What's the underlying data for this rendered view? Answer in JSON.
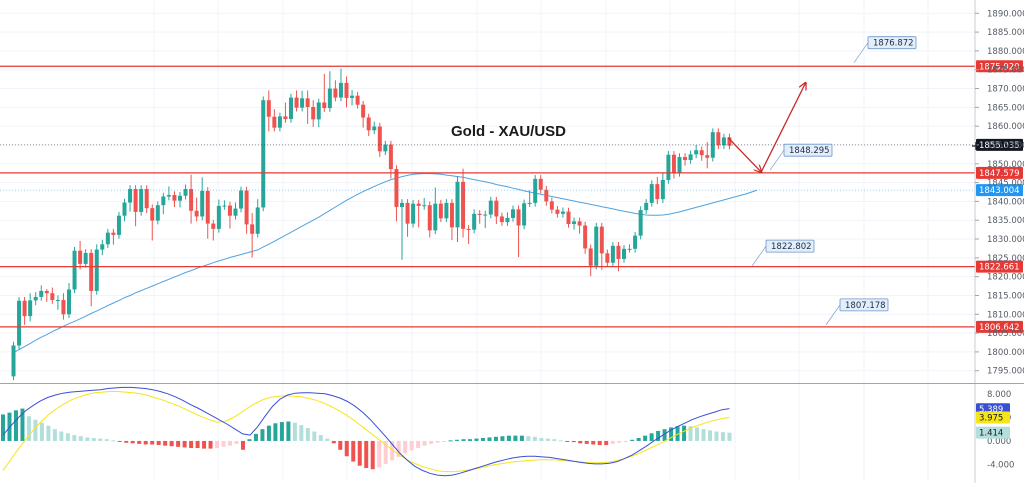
{
  "chart_data": {
    "type": "candlestick",
    "title": "Gold - XAU/USD",
    "price_axis": {
      "range": [
        1792,
        1893
      ],
      "ticks": [
        1890,
        1885,
        1880,
        1875,
        1870,
        1865,
        1860,
        1855,
        1850,
        1845,
        1840,
        1835,
        1830,
        1825,
        1820,
        1815,
        1810,
        1805,
        1800,
        1795
      ],
      "tick_labels": [
        "1890.000",
        "1885.000",
        "1880.000",
        "1875.000",
        "1870.000",
        "1865.000",
        "1860.000",
        "1855.000",
        "1850.000",
        "1845.000",
        "1840.000",
        "1835.000",
        "1830.000",
        "1825.000",
        "1820.000",
        "1815.000",
        "1810.000",
        "1805.000",
        "1800.000",
        "1795.000"
      ]
    },
    "horizontal_levels": [
      {
        "value": 1875.92,
        "label": "1875.920"
      },
      {
        "value": 1847.579,
        "label": "1847.579"
      },
      {
        "value": 1822.661,
        "label": "1822.661"
      },
      {
        "value": 1806.642,
        "label": "1806.642"
      }
    ],
    "level_callouts": [
      {
        "value": 1876.872,
        "label": "1876.872"
      },
      {
        "value": 1848.295,
        "label": "1848.295"
      },
      {
        "value": 1822.802,
        "label": "1822.802"
      },
      {
        "value": 1807.178,
        "label": "1807.178"
      }
    ],
    "price_tags": [
      {
        "value": 1855.035,
        "label": "1855.035",
        "color": "#131722"
      },
      {
        "value": 1843.004,
        "label": "1843.004",
        "color": "#2196f3"
      }
    ],
    "candle_start_price": 1793,
    "candles": [
      [
        1793.5,
        1801.7,
        1792.5,
        1802.7
      ],
      [
        1801.7,
        1813.6,
        1800.7,
        1814.6
      ],
      [
        1813.6,
        1809.5,
        1807.2,
        1814.6
      ],
      [
        1809.5,
        1813.7,
        1808.1,
        1815.6
      ],
      [
        1813.7,
        1814.6,
        1812.4,
        1815.9
      ],
      [
        1814.6,
        1816.2,
        1813.6,
        1817.7
      ],
      [
        1816.2,
        1815.6,
        1813.3,
        1816.7
      ],
      [
        1815.6,
        1813.8,
        1812.8,
        1817.1
      ],
      [
        1813.8,
        1813.8,
        1811.2,
        1815.0
      ],
      [
        1813.8,
        1810.0,
        1808.6,
        1815.6
      ],
      [
        1810.0,
        1816.6,
        1809.0,
        1818.3
      ],
      [
        1816.6,
        1826.9,
        1815.6,
        1827.9
      ],
      [
        1826.9,
        1823.4,
        1821.9,
        1829.5
      ],
      [
        1823.4,
        1826.3,
        1822.4,
        1827.3
      ],
      [
        1826.3,
        1816.2,
        1812.1,
        1827.3
      ],
      [
        1816.2,
        1827.2,
        1815.2,
        1828.6
      ],
      [
        1827.2,
        1828.6,
        1825.7,
        1829.8
      ],
      [
        1828.6,
        1831.7,
        1827.6,
        1832.7
      ],
      [
        1831.7,
        1831.1,
        1828.5,
        1832.7
      ],
      [
        1831.1,
        1836.2,
        1830.1,
        1837.2
      ],
      [
        1836.2,
        1839.7,
        1834.7,
        1840.7
      ],
      [
        1839.7,
        1843.3,
        1837.3,
        1844.3
      ],
      [
        1843.3,
        1837.2,
        1833.4,
        1844.3
      ],
      [
        1837.2,
        1843.3,
        1836.2,
        1844.3
      ],
      [
        1843.3,
        1838.2,
        1836.9,
        1844.3
      ],
      [
        1838.2,
        1834.9,
        1829.6,
        1839.2
      ],
      [
        1834.9,
        1839.0,
        1833.9,
        1840.0
      ],
      [
        1839.0,
        1841.3,
        1836.6,
        1842.3
      ],
      [
        1841.3,
        1841.7,
        1840.3,
        1844.0
      ],
      [
        1841.7,
        1840.2,
        1838.5,
        1842.7
      ],
      [
        1840.2,
        1841.5,
        1838.4,
        1842.5
      ],
      [
        1841.5,
        1843.3,
        1840.5,
        1844.5
      ],
      [
        1843.3,
        1837.5,
        1834.1,
        1847.1
      ],
      [
        1837.5,
        1836.0,
        1834.7,
        1841.0
      ],
      [
        1836.0,
        1842.8,
        1835.0,
        1846.4
      ],
      [
        1842.8,
        1834.1,
        1830.1,
        1843.8
      ],
      [
        1834.1,
        1832.7,
        1829.6,
        1835.1
      ],
      [
        1832.7,
        1838.8,
        1831.7,
        1840.5
      ],
      [
        1838.8,
        1838.9,
        1837.8,
        1840.3
      ],
      [
        1838.9,
        1836.2,
        1832.8,
        1839.9
      ],
      [
        1836.2,
        1838.1,
        1835.2,
        1839.7
      ],
      [
        1838.1,
        1842.9,
        1837.1,
        1843.9
      ],
      [
        1842.9,
        1833.9,
        1831.4,
        1843.9
      ],
      [
        1833.9,
        1831.4,
        1825.1,
        1836.9
      ],
      [
        1831.4,
        1838.4,
        1830.4,
        1840.6
      ],
      [
        1838.4,
        1866.9,
        1837.4,
        1867.9
      ],
      [
        1866.9,
        1862.5,
        1858.6,
        1869.5
      ],
      [
        1862.5,
        1859.6,
        1858.6,
        1864.5
      ],
      [
        1859.6,
        1862.6,
        1858.6,
        1863.6
      ],
      [
        1862.6,
        1861.9,
        1860.9,
        1866.3
      ],
      [
        1861.9,
        1867.6,
        1860.9,
        1868.6
      ],
      [
        1867.6,
        1864.9,
        1863.9,
        1869.5
      ],
      [
        1864.9,
        1867.4,
        1863.9,
        1869.4
      ],
      [
        1867.4,
        1865.1,
        1860.6,
        1869.5
      ],
      [
        1865.1,
        1861.8,
        1859.8,
        1866.9
      ],
      [
        1861.8,
        1866.3,
        1859.7,
        1867.3
      ],
      [
        1866.3,
        1864.8,
        1863.8,
        1873.9
      ],
      [
        1864.8,
        1870.0,
        1863.8,
        1874.6
      ],
      [
        1870.0,
        1867.6,
        1866.6,
        1872.2
      ],
      [
        1867.6,
        1871.5,
        1866.6,
        1875.3
      ],
      [
        1871.5,
        1867.5,
        1865.0,
        1873.2
      ],
      [
        1867.5,
        1868.1,
        1865.5,
        1869.6
      ],
      [
        1868.1,
        1865.7,
        1864.7,
        1869.1
      ],
      [
        1865.7,
        1862.3,
        1859.6,
        1866.7
      ],
      [
        1862.3,
        1858.9,
        1857.4,
        1863.3
      ],
      [
        1858.9,
        1859.9,
        1857.9,
        1861.2
      ],
      [
        1859.9,
        1853.3,
        1851.8,
        1860.9
      ],
      [
        1853.3,
        1855.1,
        1852.3,
        1856.1
      ],
      [
        1855.1,
        1848.6,
        1846.1,
        1856.1
      ],
      [
        1848.6,
        1838.5,
        1834.7,
        1849.6
      ],
      [
        1838.5,
        1839.6,
        1824.5,
        1840.6
      ],
      [
        1839.6,
        1834.1,
        1830.6,
        1840.6
      ],
      [
        1834.1,
        1839.4,
        1833.1,
        1840.4
      ],
      [
        1839.4,
        1838.8,
        1833.1,
        1840.4
      ],
      [
        1838.8,
        1839.0,
        1837.8,
        1840.9
      ],
      [
        1839.0,
        1832.3,
        1830.4,
        1840.0
      ],
      [
        1832.3,
        1839.4,
        1831.3,
        1843.7
      ],
      [
        1839.4,
        1835.5,
        1834.5,
        1840.4
      ],
      [
        1835.5,
        1839.6,
        1834.5,
        1840.6
      ],
      [
        1839.6,
        1833.1,
        1829.7,
        1840.6
      ],
      [
        1833.1,
        1845.2,
        1829.2,
        1846.7
      ],
      [
        1845.2,
        1832.7,
        1830.4,
        1848.7
      ],
      [
        1832.7,
        1832.5,
        1828.7,
        1833.7
      ],
      [
        1832.5,
        1836.7,
        1831.5,
        1837.9
      ],
      [
        1836.7,
        1836.4,
        1834.1,
        1837.7
      ],
      [
        1836.4,
        1836.5,
        1832.9,
        1837.5
      ],
      [
        1836.5,
        1840.2,
        1835.5,
        1841.2
      ],
      [
        1840.2,
        1836.0,
        1834.0,
        1841.2
      ],
      [
        1836.0,
        1834.5,
        1833.5,
        1837.0
      ],
      [
        1834.5,
        1835.6,
        1833.5,
        1837.1
      ],
      [
        1835.6,
        1837.9,
        1834.6,
        1838.9
      ],
      [
        1837.9,
        1833.6,
        1825.2,
        1838.9
      ],
      [
        1833.6,
        1839.5,
        1832.6,
        1840.5
      ],
      [
        1839.5,
        1839.6,
        1838.5,
        1842.9
      ],
      [
        1839.6,
        1846.0,
        1838.6,
        1847.0
      ],
      [
        1846.0,
        1843.1,
        1842.1,
        1847.0
      ],
      [
        1843.1,
        1840.0,
        1838.8,
        1844.1
      ],
      [
        1840.0,
        1837.8,
        1836.8,
        1841.0
      ],
      [
        1837.8,
        1836.7,
        1835.7,
        1838.8
      ],
      [
        1836.7,
        1837.3,
        1835.7,
        1838.4
      ],
      [
        1837.3,
        1834.0,
        1833.0,
        1838.3
      ],
      [
        1834.0,
        1834.7,
        1832.5,
        1835.7
      ],
      [
        1834.7,
        1833.6,
        1831.4,
        1835.7
      ],
      [
        1833.6,
        1827.5,
        1826.1,
        1834.6
      ],
      [
        1827.5,
        1822.9,
        1820.1,
        1828.5
      ],
      [
        1822.9,
        1833.3,
        1821.9,
        1834.3
      ],
      [
        1833.3,
        1826.2,
        1821.8,
        1834.3
      ],
      [
        1826.2,
        1823.7,
        1822.7,
        1827.2
      ],
      [
        1823.7,
        1828.2,
        1822.7,
        1829.2
      ],
      [
        1828.2,
        1824.7,
        1821.4,
        1829.2
      ],
      [
        1824.7,
        1827.4,
        1823.7,
        1828.4
      ],
      [
        1827.4,
        1827.4,
        1826.4,
        1828.6
      ],
      [
        1827.4,
        1830.9,
        1826.4,
        1831.9
      ],
      [
        1830.9,
        1837.7,
        1829.9,
        1838.7
      ],
      [
        1837.7,
        1839.6,
        1836.7,
        1840.6
      ],
      [
        1839.6,
        1844.6,
        1838.6,
        1845.6
      ],
      [
        1844.6,
        1840.6,
        1839.3,
        1846.5
      ],
      [
        1840.6,
        1845.7,
        1839.6,
        1847.7
      ],
      [
        1845.7,
        1852.4,
        1844.7,
        1853.4
      ],
      [
        1852.4,
        1847.6,
        1846.1,
        1853.4
      ],
      [
        1847.6,
        1851.8,
        1846.6,
        1852.8
      ],
      [
        1851.8,
        1851.0,
        1849.5,
        1852.8
      ],
      [
        1851.0,
        1852.5,
        1850.0,
        1853.5
      ],
      [
        1852.5,
        1853.6,
        1851.5,
        1855.0
      ],
      [
        1853.6,
        1852.3,
        1850.8,
        1854.6
      ],
      [
        1852.3,
        1851.6,
        1848.8,
        1855.8
      ],
      [
        1851.6,
        1858.4,
        1850.6,
        1859.4
      ],
      [
        1858.4,
        1854.9,
        1853.9,
        1859.4
      ],
      [
        1854.9,
        1857.0,
        1853.9,
        1858.0
      ],
      [
        1857.0,
        1854.8,
        1853.8,
        1858.0
      ]
    ],
    "moving_average": [
      1799.8,
      1800.6,
      1801.4,
      1802.2,
      1803.1,
      1803.9,
      1804.6,
      1805.4,
      1806.1,
      1806.8,
      1807.5,
      1808.1,
      1808.8,
      1809.5,
      1810.2,
      1810.9,
      1811.6,
      1812.3,
      1813.0,
      1813.7,
      1814.4,
      1815.0,
      1815.7,
      1816.3,
      1816.9,
      1817.5,
      1818.1,
      1818.7,
      1819.3,
      1819.9,
      1820.5,
      1821.1,
      1821.6,
      1822.2,
      1822.7,
      1823.2,
      1823.7,
      1824.2,
      1824.6,
      1825.1,
      1825.5,
      1825.9,
      1826.3,
      1826.7,
      1827.1,
      1827.9,
      1828.6,
      1829.4,
      1830.2,
      1831.0,
      1831.8,
      1832.6,
      1833.4,
      1834.2,
      1835.0,
      1835.8,
      1836.7,
      1837.6,
      1838.5,
      1839.4,
      1840.3,
      1841.1,
      1841.9,
      1842.6,
      1843.3,
      1844.0,
      1844.6,
      1845.2,
      1845.8,
      1846.2,
      1846.6,
      1846.9,
      1847.2,
      1847.3,
      1847.4,
      1847.4,
      1847.3,
      1847.2,
      1847.0,
      1846.8,
      1846.6,
      1846.4,
      1846.1,
      1845.8,
      1845.5,
      1845.2,
      1844.9,
      1844.5,
      1844.2,
      1843.9,
      1843.5,
      1843.2,
      1842.8,
      1842.5,
      1842.2,
      1841.9,
      1841.6,
      1841.3,
      1841.0,
      1840.7,
      1840.4,
      1840.1,
      1839.8,
      1839.5,
      1839.2,
      1838.9,
      1838.6,
      1838.3,
      1838.0,
      1837.7,
      1837.4,
      1837.1,
      1836.8,
      1836.6,
      1836.4,
      1836.3,
      1836.3,
      1836.4,
      1836.6,
      1836.9,
      1837.2,
      1837.6,
      1838.0,
      1838.4,
      1838.8,
      1839.2,
      1839.6,
      1840.0,
      1840.4,
      1840.8,
      1841.2,
      1841.6,
      1842.0,
      1842.5,
      1843.0
    ],
    "forecast_arrows": [
      {
        "from_candle": 128,
        "from": 1857.0,
        "to_candle": 134,
        "to": 1847.8
      },
      {
        "from_candle": 134,
        "from": 1847.8,
        "to_candle": 142,
        "to": 1871.5
      }
    ],
    "macd": {
      "axis_ticks": [
        8.0,
        4.0,
        0.0,
        -4.0
      ],
      "axis_labels": [
        "8.000",
        "4.000",
        "0.000",
        "-4.000"
      ],
      "range": [
        -6.8,
        9.5
      ],
      "macd_value": {
        "value": 5.389,
        "label": "5.389"
      },
      "signal_value": {
        "value": 3.975,
        "label": "3.975"
      },
      "hist_value": {
        "value": 1.414,
        "label": "1.414"
      },
      "macd_line": [
        1.0,
        2.5,
        3.9,
        5.1,
        6.0,
        6.8,
        7.4,
        7.8,
        8.1,
        8.3,
        8.4,
        8.5,
        8.6,
        8.7,
        8.9,
        9.0,
        9.1,
        9.1,
        9.0,
        8.9,
        8.7,
        8.4,
        8.0,
        7.5,
        6.9,
        6.2,
        5.6,
        4.9,
        4.2,
        3.5,
        2.8,
        2.0,
        1.2,
        1.0,
        2.4,
        4.2,
        5.9,
        7.1,
        7.8,
        8.1,
        8.2,
        8.2,
        8.1,
        8.0,
        7.7,
        7.3,
        6.7,
        5.9,
        4.9,
        3.7,
        2.3,
        0.9,
        -0.6,
        -2.1,
        -3.3,
        -4.3,
        -5.0,
        -5.5,
        -5.8,
        -5.9,
        -5.8,
        -5.5,
        -5.1,
        -4.7,
        -4.3,
        -3.9,
        -3.5,
        -3.2,
        -2.9,
        -2.7,
        -2.6,
        -2.6,
        -2.7,
        -2.8,
        -3.0,
        -3.2,
        -3.4,
        -3.6,
        -3.8,
        -3.9,
        -3.9,
        -3.8,
        -3.5,
        -3.0,
        -2.4,
        -1.6,
        -0.8,
        0.1,
        0.9,
        1.7,
        2.4,
        3.0,
        3.6,
        4.1,
        4.5,
        4.9,
        5.3,
        5.5
      ],
      "signal_line": [
        -5.0,
        -3.2,
        -1.4,
        0.3,
        1.9,
        3.3,
        4.5,
        5.5,
        6.3,
        7.0,
        7.5,
        7.9,
        8.2,
        8.3,
        8.4,
        8.4,
        8.3,
        8.2,
        8.0,
        7.7,
        7.3,
        6.9,
        6.4,
        5.9,
        5.3,
        4.7,
        4.1,
        3.6,
        3.2,
        3.3,
        3.9,
        4.7,
        5.6,
        6.4,
        7.0,
        7.4,
        7.6,
        7.7,
        7.6,
        7.5,
        7.2,
        6.9,
        6.4,
        5.8,
        5.1,
        4.3,
        3.4,
        2.4,
        1.4,
        0.4,
        -0.6,
        -1.6,
        -2.5,
        -3.3,
        -3.9,
        -4.4,
        -4.8,
        -5.1,
        -5.2,
        -5.2,
        -5.1,
        -4.9,
        -4.7,
        -4.4,
        -4.1,
        -3.9,
        -3.7,
        -3.5,
        -3.4,
        -3.3,
        -3.2,
        -3.2,
        -3.2,
        -3.3,
        -3.4,
        -3.5,
        -3.6,
        -3.7,
        -3.7,
        -3.6,
        -3.4,
        -3.1,
        -2.7,
        -2.2,
        -1.6,
        -1.0,
        -0.4,
        0.3,
        1.0,
        1.6,
        2.2,
        2.7,
        3.1,
        3.5,
        3.8,
        4.0
      ],
      "histogram": [
        4.5,
        4.8,
        5.2,
        5.5,
        4.2,
        3.6,
        3.1,
        2.6,
        2.0,
        1.6,
        1.3,
        1.0,
        0.8,
        0.6,
        0.5,
        0.4,
        0.3,
        0.1,
        -0.1,
        -0.3,
        -0.4,
        -0.5,
        -0.6,
        -0.6,
        -0.7,
        -0.8,
        -0.9,
        -1.0,
        -1.1,
        -1.2,
        -1.2,
        -1.3,
        -1.3,
        -1.2,
        -1.0,
        -0.8,
        -0.5,
        -1.5,
        0.3,
        1.2,
        2.0,
        2.6,
        3.0,
        3.2,
        3.3,
        3.1,
        2.7,
        2.2,
        1.6,
        1.0,
        0.4,
        -0.4,
        -1.5,
        -2.6,
        -3.5,
        -4.2,
        -4.6,
        -4.8,
        -4.5,
        -3.9,
        -3.3,
        -2.7,
        -2.1,
        -1.6,
        -1.2,
        -0.8,
        -0.5,
        -0.3,
        -0.1,
        0.1,
        0.2,
        0.3,
        0.3,
        0.4,
        0.5,
        0.6,
        0.7,
        0.8,
        0.9,
        0.9,
        0.9,
        0.8,
        0.7,
        0.5,
        0.4,
        0.3,
        0.1,
        -0.1,
        -0.2,
        -0.4,
        -0.5,
        -0.6,
        -0.7,
        -0.7,
        -0.5,
        -0.3,
        -0.1,
        0.2,
        0.5,
        0.9,
        1.3,
        1.7,
        2.0,
        2.3,
        2.5,
        2.6,
        2.5,
        2.3,
        2.0,
        1.8,
        1.6,
        1.5,
        1.4
      ]
    }
  }
}
